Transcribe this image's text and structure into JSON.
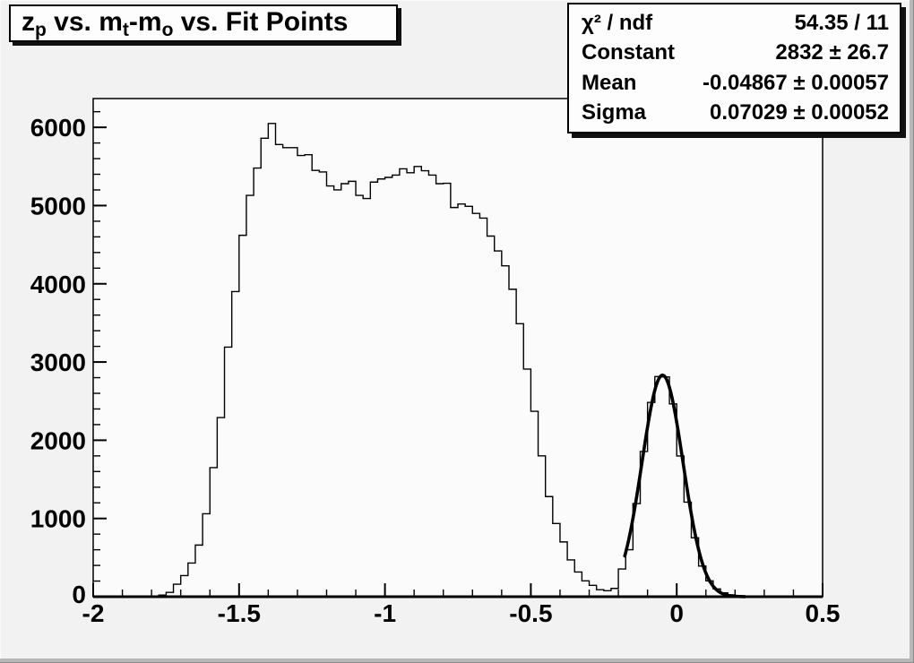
{
  "window": {
    "background_color": "#f2f2f2"
  },
  "title": {
    "text": "z_p vs. m_t-m_o vs. Fit Points",
    "parts": [
      {
        "text": "z"
      },
      {
        "text": "p",
        "subscript": true
      },
      {
        "text": " vs. m"
      },
      {
        "text": "t",
        "subscript": true
      },
      {
        "text": "-m"
      },
      {
        "text": "o",
        "subscript": true
      },
      {
        "text": " vs. Fit Points"
      }
    ]
  },
  "stats": {
    "rows": [
      {
        "label": "χ² / ndf",
        "value": "54.35 / 11"
      },
      {
        "label": "Constant",
        "value": "2832 ± 26.7"
      },
      {
        "label": "Mean",
        "value": "-0.04867 ± 0.00057"
      },
      {
        "label": "Sigma",
        "value": "0.07029 ± 0.00052"
      }
    ]
  },
  "chart_data": {
    "type": "bar",
    "style": "step-histogram",
    "title": "z_p vs. m_t-m_o vs. Fit Points",
    "xlabel": "",
    "ylabel": "",
    "xlim": [
      -2,
      0.5
    ],
    "ylim": [
      0,
      6368
    ],
    "grid": false,
    "legend": "none",
    "bin_start": -2,
    "bin_width": 0.025,
    "values": [
      0,
      0,
      0,
      0,
      0,
      0,
      0,
      0,
      5,
      20,
      55,
      160,
      270,
      430,
      660,
      1060,
      1650,
      2290,
      3190,
      3900,
      4620,
      5130,
      5480,
      5860,
      6050,
      5780,
      5740,
      5740,
      5640,
      5650,
      5450,
      5430,
      5250,
      5200,
      5280,
      5310,
      5130,
      5090,
      5300,
      5340,
      5360,
      5390,
      5470,
      5420,
      5500,
      5445,
      5390,
      5280,
      5285,
      4975,
      5020,
      4990,
      4900,
      4840,
      4610,
      4420,
      4230,
      3930,
      3490,
      2910,
      2370,
      1800,
      1280,
      935,
      700,
      470,
      316,
      202,
      145,
      90,
      76,
      106,
      354,
      601,
      1190,
      1856,
      2483,
      2814,
      2810,
      2464,
      1799,
      1209,
      753,
      391,
      202,
      99,
      49,
      23,
      11,
      3,
      0,
      0,
      0,
      0,
      0,
      0,
      0,
      0,
      0,
      0
    ],
    "x_major_ticks": [
      -2,
      -1.5,
      -1,
      -0.5,
      0,
      0.5
    ],
    "x_tick_labels": [
      "-2",
      "-1.5",
      "-1",
      "-0.5",
      "0",
      "0.5"
    ],
    "x_minor_step": 0.1,
    "y_major_ticks": [
      0,
      1000,
      2000,
      3000,
      4000,
      5000,
      6000
    ],
    "y_tick_labels": [
      "0",
      "1000",
      "2000",
      "3000",
      "4000",
      "5000",
      "6000"
    ],
    "y_minor_step": 200,
    "fit": {
      "shape": "gaussian",
      "constant": 2832,
      "mean": -0.04867,
      "sigma": 0.07029,
      "draw_range": [
        -0.178,
        0.235
      ]
    },
    "colors": {
      "histogram_line": "#000000",
      "fit_line": "#000000",
      "frame_background": "#fbfbfb",
      "canvas_background": "#f2f2f2",
      "text": "#000000"
    }
  }
}
